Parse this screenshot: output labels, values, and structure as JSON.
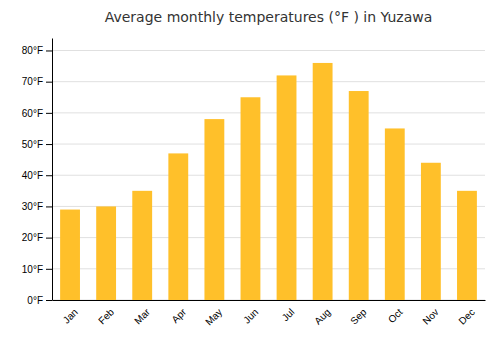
{
  "chart_data": {
    "type": "bar",
    "title": "Average monthly temperatures (°F ) in Yuzawa",
    "categories": [
      "Jan",
      "Feb",
      "Mar",
      "Apr",
      "May",
      "Jun",
      "Jul",
      "Aug",
      "Sep",
      "Oct",
      "Nov",
      "Dec"
    ],
    "values": [
      29,
      30,
      35,
      47,
      58,
      65,
      72,
      76,
      67,
      55,
      44,
      35
    ],
    "color": "#FFC02A",
    "ylim": [
      0,
      84
    ],
    "yticks": [
      {
        "value": 0,
        "label": "0°F"
      },
      {
        "value": 10,
        "label": "10°F"
      },
      {
        "value": 20,
        "label": "20°F"
      },
      {
        "value": 30,
        "label": "30°F"
      },
      {
        "value": 40,
        "label": "40°F"
      },
      {
        "value": 50,
        "label": "50°F"
      },
      {
        "value": 60,
        "label": "60°F"
      },
      {
        "value": 70,
        "label": "70°F"
      },
      {
        "value": 80,
        "label": "80°F"
      }
    ],
    "grid": true
  }
}
